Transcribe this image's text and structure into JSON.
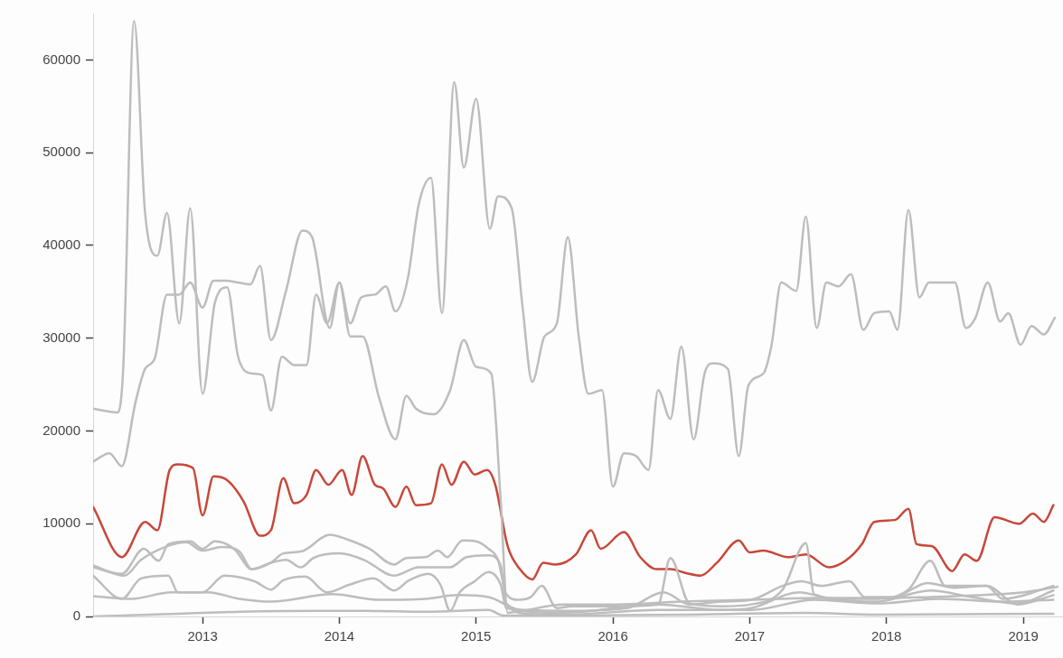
{
  "chart_data": {
    "type": "line",
    "xlim": [
      2012.2,
      2019.29
    ],
    "ylim": [
      0,
      65000
    ],
    "xticks": [
      2013,
      2014,
      2015,
      2016,
      2017,
      2018,
      2019
    ],
    "yticks": [
      0,
      10000,
      20000,
      30000,
      40000,
      50000,
      60000
    ],
    "grid": false,
    "legend": false,
    "marker": "none",
    "line_style": "solid",
    "series": [
      {
        "color": "#bdbdbd",
        "x": [
          2012.2,
          2012.38,
          2012.42,
          2012.5,
          2012.58,
          2012.67,
          2012.74,
          2012.83,
          2012.91,
          2013.0,
          2013.09,
          2013.18,
          2013.26,
          2013.36,
          2013.44,
          2013.5,
          2013.58,
          2013.67,
          2013.76,
          2013.83,
          2013.91,
          2014.0,
          2014.08,
          2014.17,
          2014.29,
          2014.41,
          2014.49,
          2014.56,
          2014.69,
          2014.81,
          2014.91,
          2015.0,
          2015.11,
          2015.18,
          2015.23,
          2015.3,
          2015.64,
          2016.0,
          2016.5,
          2017.0,
          2017.5,
          2018.0,
          2018.5,
          2019.0,
          2019.25
        ],
        "values": [
          22400,
          22000,
          26700,
          64200,
          43500,
          38900,
          43500,
          31600,
          44000,
          24000,
          33800,
          35500,
          28000,
          26200,
          26000,
          22200,
          28000,
          27100,
          27100,
          34700,
          31600,
          36000,
          30200,
          30200,
          23600,
          19100,
          23800,
          22400,
          21800,
          24400,
          29800,
          26900,
          26200,
          12400,
          400,
          500,
          1300,
          1300,
          1600,
          1800,
          2000,
          2000,
          2200,
          2600,
          3200
        ]
      },
      {
        "color": "#bdbdbd",
        "x": [
          2012.2,
          2012.32,
          2012.41,
          2012.51,
          2012.58,
          2012.65,
          2012.74,
          2012.83,
          2012.91,
          2013.0,
          2013.08,
          2013.18,
          2013.26,
          2013.35,
          2013.42,
          2013.5,
          2013.61,
          2013.73,
          2013.8,
          2013.93,
          2014.0,
          2014.08,
          2014.16,
          2014.26,
          2014.34,
          2014.41,
          2014.5,
          2014.58,
          2014.67,
          2014.75,
          2014.84,
          2014.91,
          2015.0,
          2015.1,
          2015.16,
          2015.26,
          2015.34,
          2015.41,
          2015.5,
          2015.59,
          2015.67,
          2015.75,
          2015.82,
          2015.92,
          2016.0,
          2016.08,
          2016.17,
          2016.26,
          2016.33,
          2016.42,
          2016.5,
          2016.59,
          2016.67,
          2016.73,
          2016.84,
          2016.92,
          2016.99,
          2017.1,
          2017.16,
          2017.23,
          2017.34,
          2017.41,
          2017.49,
          2017.56,
          2017.65,
          2017.74,
          2017.83,
          2017.91,
          2018.02,
          2018.08,
          2018.16,
          2018.24,
          2018.31,
          2018.5,
          2018.58,
          2018.65,
          2018.74,
          2018.83,
          2018.89,
          2018.98,
          2019.06,
          2019.15,
          2019.23
        ],
        "values": [
          16700,
          17600,
          16200,
          23100,
          26700,
          27800,
          34700,
          34700,
          36000,
          33300,
          36200,
          36200,
          36000,
          35800,
          37800,
          29800,
          35100,
          41600,
          40900,
          31100,
          36000,
          31600,
          34400,
          34700,
          35600,
          32900,
          36400,
          44400,
          47300,
          32700,
          57600,
          48400,
          55800,
          41800,
          45300,
          44000,
          33300,
          25300,
          30200,
          31600,
          40900,
          30200,
          24000,
          24400,
          14000,
          17600,
          17300,
          15800,
          24400,
          21300,
          29100,
          19100,
          26200,
          27300,
          26700,
          17300,
          24900,
          26200,
          29300,
          36000,
          35100,
          43100,
          31100,
          36000,
          35600,
          36900,
          30900,
          32700,
          32900,
          30900,
          43800,
          34400,
          36000,
          36000,
          31100,
          32200,
          36000,
          31800,
          32700,
          29300,
          31300,
          30400,
          32200
        ]
      },
      {
        "color": "#bdbdbd",
        "x": [
          2012.2,
          2012.41,
          2012.57,
          2012.68,
          2012.75,
          2012.91,
          2013.0,
          2013.09,
          2013.23,
          2013.36,
          2013.5,
          2013.59,
          2013.72,
          2013.93,
          2014.06,
          2014.22,
          2014.4,
          2014.49,
          2014.63,
          2014.72,
          2014.79,
          2014.9,
          2015.0,
          2015.09,
          2015.16,
          2015.22,
          2015.31,
          2015.4,
          2015.48,
          2015.59,
          2015.7,
          2015.98,
          2016.33,
          2016.42,
          2016.56,
          2016.79,
          2017.01,
          2017.24,
          2017.41,
          2017.47,
          2017.7,
          2017.93,
          2018.16,
          2018.32,
          2018.43,
          2018.73,
          2018.96,
          2019.22
        ],
        "values": [
          5300,
          4600,
          7300,
          6000,
          7800,
          8100,
          7300,
          8100,
          7300,
          5100,
          5800,
          6800,
          7000,
          8800,
          8300,
          7300,
          5600,
          6300,
          6400,
          7100,
          6400,
          8200,
          8100,
          7300,
          6100,
          2400,
          1800,
          2100,
          3300,
          900,
          1100,
          1100,
          1300,
          6300,
          1400,
          1100,
          1300,
          2900,
          7900,
          2400,
          1900,
          1900,
          2900,
          6000,
          3300,
          3300,
          1300,
          2300
        ]
      },
      {
        "color": "#bdbdbd",
        "x": [
          2012.2,
          2012.43,
          2012.55,
          2012.73,
          2012.88,
          2013.0,
          2013.14,
          2013.27,
          2013.36,
          2013.5,
          2013.61,
          2013.72,
          2013.81,
          2014.0,
          2014.18,
          2014.4,
          2014.58,
          2014.81,
          2014.93,
          2015.09,
          2015.18,
          2015.22,
          2015.36,
          2015.64,
          2016.1,
          2016.37,
          2016.56,
          2016.79,
          2017.01,
          2017.24,
          2017.38,
          2017.52,
          2017.73,
          2017.84,
          2018.05,
          2018.3,
          2018.5,
          2018.73,
          2018.85,
          2019.22
        ],
        "values": [
          5500,
          4400,
          6100,
          7500,
          8000,
          7100,
          7500,
          7000,
          5100,
          5800,
          6100,
          5300,
          6300,
          6800,
          6100,
          4400,
          5300,
          5300,
          6400,
          6600,
          5500,
          1400,
          700,
          600,
          900,
          2600,
          1300,
          1600,
          1800,
          3300,
          3800,
          3300,
          3800,
          2100,
          2100,
          3600,
          3100,
          3300,
          1900,
          3300
        ]
      },
      {
        "color": "#bdbdbd",
        "x": [
          2012.2,
          2012.41,
          2012.55,
          2012.75,
          2012.82,
          2013.0,
          2013.16,
          2013.38,
          2013.5,
          2013.59,
          2013.75,
          2013.91,
          2014.07,
          2014.25,
          2014.4,
          2014.51,
          2014.65,
          2014.74,
          2014.81,
          2014.88,
          2014.99,
          2015.09,
          2015.18,
          2015.22,
          2015.64,
          2016.33,
          2016.79,
          2017.01,
          2017.36,
          2017.59,
          2017.93,
          2018.32,
          2018.62,
          2018.96,
          2019.22
        ],
        "values": [
          4400,
          1900,
          4100,
          4400,
          2600,
          2600,
          4400,
          3800,
          2900,
          3900,
          4300,
          2600,
          3400,
          4100,
          2800,
          3900,
          4600,
          3400,
          600,
          2600,
          3800,
          4800,
          3400,
          900,
          400,
          1300,
          700,
          900,
          2600,
          1900,
          1600,
          2800,
          2100,
          1400,
          2800
        ]
      },
      {
        "color": "#bdbdbd",
        "x": [
          2012.2,
          2012.48,
          2012.77,
          2013.04,
          2013.27,
          2013.5,
          2013.95,
          2014.29,
          2014.63,
          2014.86,
          2015.09,
          2015.2,
          2015.31,
          2015.64,
          2016.33,
          2017.01,
          2017.47,
          2017.93,
          2018.39,
          2018.85,
          2019.22
        ],
        "values": [
          2200,
          1900,
          2600,
          2600,
          1900,
          1600,
          2400,
          1800,
          1900,
          2300,
          2100,
          1400,
          400,
          200,
          700,
          700,
          1800,
          1400,
          1900,
          1600,
          1800
        ]
      },
      {
        "color": "#bdbdbd",
        "x": [
          2012.2,
          2012.82,
          2013.27,
          2013.84,
          2014.18,
          2014.63,
          2015.09,
          2015.2,
          2015.64,
          2016.56,
          2017.41,
          2017.93,
          2019.22
        ],
        "values": [
          0,
          300,
          500,
          600,
          600,
          500,
          700,
          100,
          100,
          200,
          400,
          200,
          300
        ]
      },
      {
        "color": "#c8473a",
        "x": [
          2012.2,
          2012.41,
          2012.58,
          2012.67,
          2012.76,
          2012.82,
          2012.93,
          2013.0,
          2013.08,
          2013.18,
          2013.3,
          2013.42,
          2013.5,
          2013.59,
          2013.67,
          2013.76,
          2013.83,
          2013.92,
          2014.02,
          2014.09,
          2014.17,
          2014.26,
          2014.32,
          2014.41,
          2014.49,
          2014.56,
          2014.67,
          2014.75,
          2014.82,
          2014.91,
          2014.99,
          2015.08,
          2015.14,
          2015.23,
          2015.32,
          2015.41,
          2015.49,
          2015.58,
          2015.73,
          2015.84,
          2015.91,
          2016.08,
          2016.2,
          2016.32,
          2016.42,
          2016.53,
          2016.64,
          2016.76,
          2016.92,
          2017.0,
          2017.1,
          2017.28,
          2017.41,
          2017.58,
          2017.7,
          2017.82,
          2017.91,
          2018.06,
          2018.16,
          2018.22,
          2018.33,
          2018.48,
          2018.57,
          2018.66,
          2018.79,
          2018.97,
          2019.07,
          2019.15,
          2019.22
        ],
        "values": [
          11800,
          6400,
          10200,
          9300,
          15800,
          16400,
          16000,
          10900,
          15100,
          14700,
          12400,
          8700,
          9300,
          14900,
          12200,
          13100,
          15800,
          14200,
          15800,
          13100,
          17300,
          14200,
          13800,
          11800,
          14000,
          12000,
          12200,
          16400,
          14200,
          16700,
          15300,
          15800,
          14200,
          7600,
          5100,
          4000,
          5800,
          5600,
          6700,
          9300,
          7300,
          9100,
          6400,
          5100,
          5100,
          4700,
          4400,
          5800,
          8200,
          6900,
          7100,
          6400,
          6700,
          5300,
          6000,
          7800,
          10200,
          10400,
          11600,
          7800,
          7600,
          4900,
          6700,
          6000,
          10700,
          10000,
          11100,
          10200,
          12000
        ]
      }
    ]
  }
}
